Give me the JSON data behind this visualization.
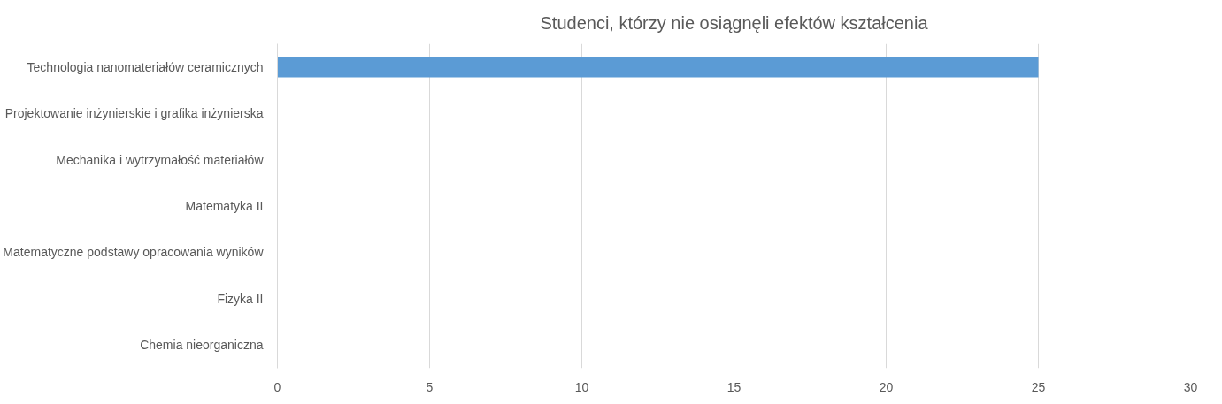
{
  "chart_data": {
    "type": "bar",
    "orientation": "horizontal",
    "title": "Studenci, którzy nie osiągnęli efektów kształcenia",
    "categories": [
      "Technologia nanomateriałów ceramicznych",
      "Projektowanie inżynierskie i grafika inżynierska",
      "Mechanika i wytrzymałość materiałów",
      "Matematyka II",
      "Matematyczne podstawy opracowania wyników",
      "Fizyka II",
      "Chemia nieorganiczna"
    ],
    "values": [
      25,
      0,
      0,
      0,
      0,
      0,
      0
    ],
    "color": "#5b9bd5",
    "xlim": [
      0,
      30
    ],
    "xticks": [
      0,
      5,
      10,
      15,
      20,
      25,
      30
    ],
    "grid": "x"
  }
}
